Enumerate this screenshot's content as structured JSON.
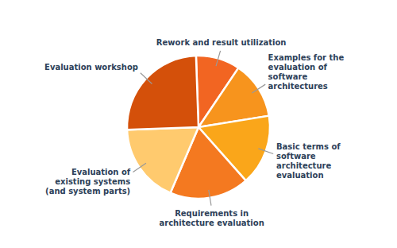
{
  "chart_data": {
    "type": "pie",
    "categories": [
      "Rework and result utilization",
      "Examples for the\nevaluation of\nsoftware\narchitectures",
      "Basic terms of\nsoftware\narchitecture\nevaluation",
      "Requirements in\narchitecture evaluation",
      "Evaluation of\nexisting systems\n(and system parts)",
      "Evaluation workshop"
    ],
    "values": [
      10,
      13,
      16,
      18,
      18,
      25
    ],
    "colors": [
      "#F26522",
      "#F7941D",
      "#FAA61A",
      "#F47920",
      "#FFCA6E",
      "#D4500A"
    ]
  }
}
